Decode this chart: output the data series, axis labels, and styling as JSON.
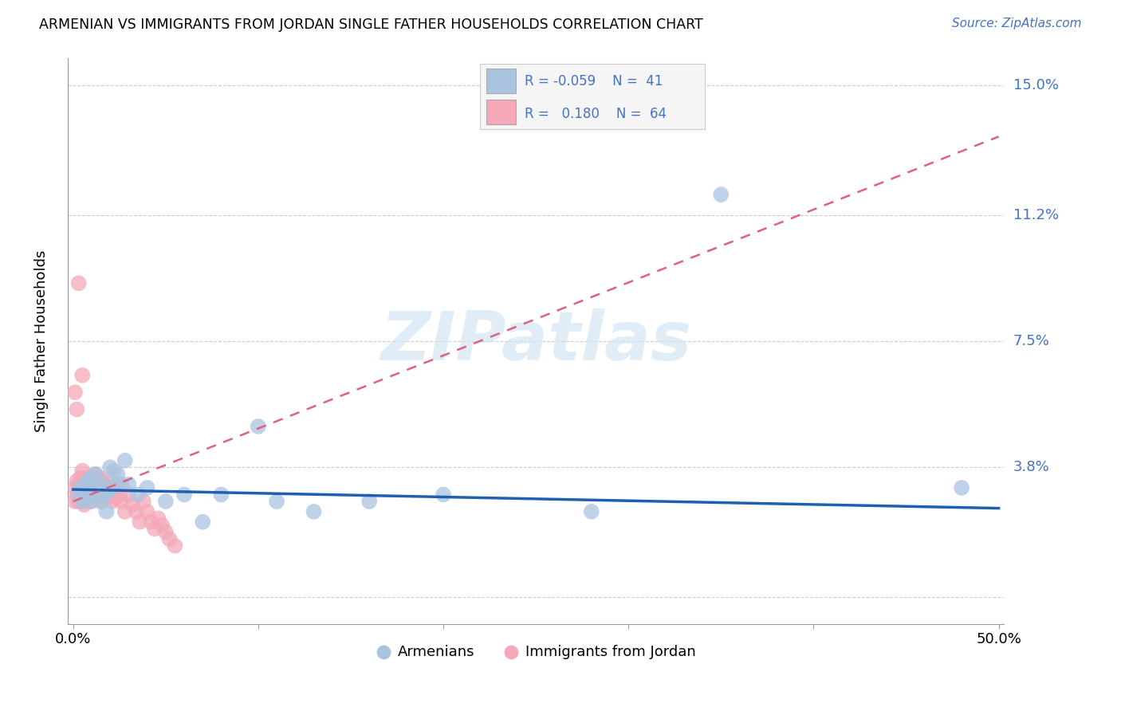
{
  "title": "ARMENIAN VS IMMIGRANTS FROM JORDAN SINGLE FATHER HOUSEHOLDS CORRELATION CHART",
  "source": "Source: ZipAtlas.com",
  "ylabel": "Single Father Households",
  "yticks": [
    0.0,
    0.038,
    0.075,
    0.112,
    0.15
  ],
  "ytick_labels": [
    "",
    "3.8%",
    "7.5%",
    "11.2%",
    "15.0%"
  ],
  "xlim": [
    -0.003,
    0.503
  ],
  "ylim": [
    -0.008,
    0.158
  ],
  "watermark": "ZIPatlas",
  "armenian_color": "#aac4e0",
  "jordan_color": "#f4a8b8",
  "armenian_line_color": "#2060b0",
  "jordan_line_color": "#e06080",
  "armenian_x": [
    0.003,
    0.004,
    0.005,
    0.006,
    0.007,
    0.007,
    0.008,
    0.008,
    0.009,
    0.01,
    0.01,
    0.011,
    0.012,
    0.013,
    0.014,
    0.015,
    0.016,
    0.017,
    0.018,
    0.019,
    0.02,
    0.021,
    0.022,
    0.024,
    0.026,
    0.028,
    0.03,
    0.035,
    0.04,
    0.05,
    0.06,
    0.07,
    0.08,
    0.1,
    0.11,
    0.13,
    0.16,
    0.2,
    0.28,
    0.35,
    0.48
  ],
  "armenian_y": [
    0.03,
    0.032,
    0.028,
    0.031,
    0.033,
    0.029,
    0.034,
    0.03,
    0.032,
    0.028,
    0.035,
    0.031,
    0.036,
    0.03,
    0.032,
    0.028,
    0.033,
    0.03,
    0.025,
    0.031,
    0.038,
    0.032,
    0.037,
    0.036,
    0.033,
    0.04,
    0.033,
    0.03,
    0.032,
    0.028,
    0.03,
    0.022,
    0.03,
    0.05,
    0.028,
    0.025,
    0.028,
    0.03,
    0.025,
    0.118,
    0.032
  ],
  "jordan_x": [
    0.001,
    0.001,
    0.002,
    0.002,
    0.003,
    0.003,
    0.003,
    0.004,
    0.004,
    0.005,
    0.005,
    0.005,
    0.006,
    0.006,
    0.006,
    0.007,
    0.007,
    0.007,
    0.008,
    0.008,
    0.009,
    0.009,
    0.01,
    0.01,
    0.011,
    0.011,
    0.012,
    0.012,
    0.013,
    0.013,
    0.014,
    0.014,
    0.015,
    0.015,
    0.016,
    0.016,
    0.017,
    0.018,
    0.019,
    0.02,
    0.021,
    0.022,
    0.023,
    0.024,
    0.025,
    0.026,
    0.028,
    0.03,
    0.032,
    0.034,
    0.036,
    0.038,
    0.04,
    0.042,
    0.044,
    0.046,
    0.048,
    0.05,
    0.052,
    0.055,
    0.001,
    0.002,
    0.003,
    0.005
  ],
  "jordan_y": [
    0.028,
    0.032,
    0.03,
    0.034,
    0.028,
    0.033,
    0.029,
    0.031,
    0.035,
    0.029,
    0.033,
    0.037,
    0.027,
    0.032,
    0.028,
    0.031,
    0.035,
    0.029,
    0.033,
    0.03,
    0.028,
    0.034,
    0.031,
    0.035,
    0.029,
    0.033,
    0.03,
    0.036,
    0.029,
    0.034,
    0.031,
    0.035,
    0.028,
    0.033,
    0.03,
    0.034,
    0.031,
    0.029,
    0.033,
    0.03,
    0.028,
    0.032,
    0.029,
    0.033,
    0.03,
    0.028,
    0.025,
    0.03,
    0.027,
    0.025,
    0.022,
    0.028,
    0.025,
    0.022,
    0.02,
    0.023,
    0.021,
    0.019,
    0.017,
    0.015,
    0.06,
    0.055,
    0.092,
    0.065
  ],
  "arm_trend_x": [
    0.0,
    0.5
  ],
  "arm_trend_y": [
    0.0315,
    0.026
  ],
  "jor_trend_x": [
    0.0,
    0.5
  ],
  "jor_trend_y": [
    0.028,
    0.135
  ]
}
